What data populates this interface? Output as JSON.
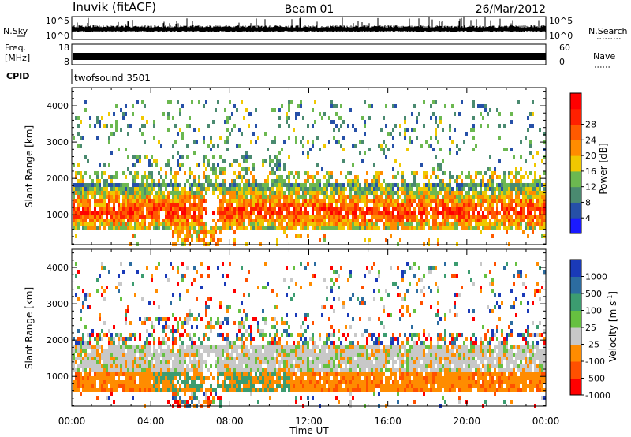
{
  "header": {
    "station": "Inuvik (fitACF)",
    "beam": "Beam 01",
    "date": "26/Mar/2012"
  },
  "strips": {
    "nsky_label": "N.Sky",
    "nsky_ticks": [
      "10^5",
      "10^0"
    ],
    "nsearch_label": "N.Search",
    "nsearch_ticks": [
      "10^5",
      "10^0"
    ],
    "freq_label_line1": "Freq.",
    "freq_label_line2": "[MHz]",
    "freq_ticks": [
      "18",
      "8"
    ],
    "nave_label": "Nave",
    "nave_ticks": [
      "60",
      "0"
    ],
    "cpid_label": "CPID",
    "cpid_value": "twofsound 3501"
  },
  "colors": {
    "power": [
      "#1a1aff",
      "#2650a8",
      "#4a8a70",
      "#6cb850",
      "#f0c800",
      "#ff8c00",
      "#ff5a00",
      "#ff2000",
      "#ff0000"
    ],
    "velocity": [
      "#ff0000",
      "#ff5000",
      "#ff8c00",
      "#c8c8c8",
      "#66c040",
      "#3c9c70",
      "#2c6ca0",
      "#1a3ab8"
    ],
    "ground_scatter": "#b8b8b8"
  },
  "chart_data": [
    {
      "type": "heatmap",
      "name": "power",
      "ylabel": "Slant Range [km]",
      "yticks": [
        "1000",
        "2000",
        "3000",
        "4000"
      ],
      "ylim": [
        180,
        4500
      ],
      "xlim": [
        "00:00",
        "24:00"
      ],
      "colorbar_label": "Power [dB]",
      "colorbar_ticks": [
        "4",
        "8",
        "12",
        "16",
        "20",
        "24",
        "28"
      ]
    },
    {
      "type": "heatmap",
      "name": "velocity",
      "ylabel": "Slant Range [km]",
      "yticks": [
        "1000",
        "2000",
        "3000",
        "4000"
      ],
      "ylim": [
        180,
        4500
      ],
      "xlim": [
        "00:00",
        "24:00"
      ],
      "colorbar_label": "Velocity [m s",
      "colorbar_label_sup": "-1",
      "colorbar_label_end": "]",
      "colorbar_ticks": [
        "1000",
        "500",
        "100",
        "25",
        "-25",
        "-100",
        "-500",
        "-1000"
      ]
    }
  ],
  "xaxis": {
    "label": "Time UT",
    "ticks": [
      "00:00",
      "04:00",
      "08:00",
      "12:00",
      "16:00",
      "20:00",
      "00:00"
    ]
  }
}
